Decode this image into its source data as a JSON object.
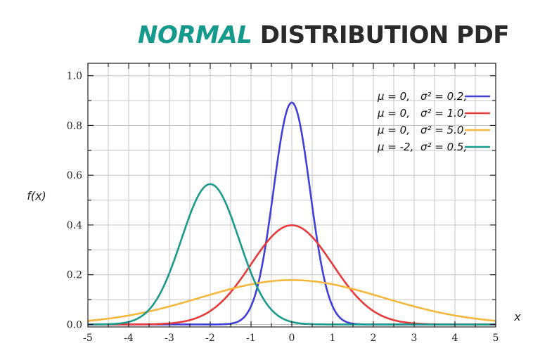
{
  "title": {
    "accent": "NORMAL",
    "rest": "DISTRIBUTION PDF",
    "accent_color": "#149a8c",
    "rest_color": "#2a2a2a"
  },
  "chart_data": {
    "type": "line",
    "xlabel": "x",
    "ylabel": "f(x)",
    "xlim": [
      -5,
      5
    ],
    "ylim": [
      -0.01,
      1.05
    ],
    "x_ticks": [
      -5,
      -4,
      -3,
      -2,
      -1,
      0,
      1,
      2,
      3,
      4,
      5
    ],
    "y_ticks": [
      0.0,
      0.2,
      0.4,
      0.6,
      0.8,
      1.0
    ],
    "x_tick_labels": [
      "-5",
      "-4",
      "-3",
      "-2",
      "-1",
      "0",
      "1",
      "2",
      "3",
      "4",
      "5"
    ],
    "y_tick_labels": [
      "0.0",
      "0.2",
      "0.4",
      "0.6",
      "0.8",
      "1.0"
    ],
    "grid": true,
    "legend_position": "top-right",
    "series": [
      {
        "mu_label": "μ = 0,",
        "sigma_label": "σ² = 0.2,",
        "mu": 0,
        "variance": 0.2,
        "color": "#4040d8"
      },
      {
        "mu_label": "μ = 0,",
        "sigma_label": "σ² = 1.0,",
        "mu": 0,
        "variance": 1.0,
        "color": "#e8393a"
      },
      {
        "mu_label": "μ = 0,",
        "sigma_label": "σ² = 5.0,",
        "mu": 0,
        "variance": 5.0,
        "color": "#f5b73b"
      },
      {
        "mu_label": "μ = -2,",
        "sigma_label": "σ² = 0.5,",
        "mu": -2,
        "variance": 0.5,
        "color": "#1a9a8b"
      }
    ]
  }
}
